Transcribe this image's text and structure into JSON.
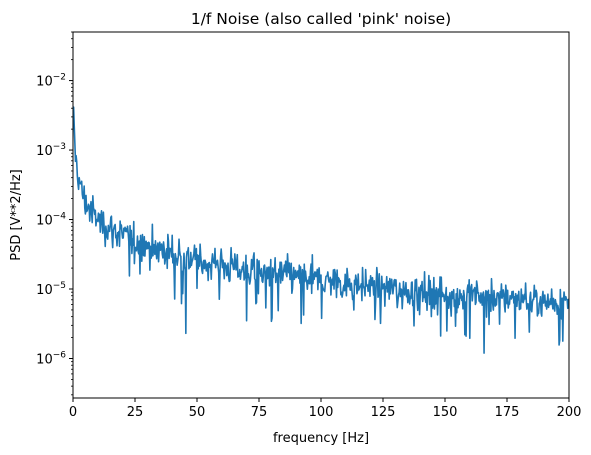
{
  "chart_data": {
    "type": "line",
    "title": "1/f Noise (also called 'pink' noise)",
    "xlabel": "frequency [Hz]",
    "ylabel": "PSD [V**2/Hz]",
    "xlim": [
      0,
      200
    ],
    "ylim": [
      2.7e-07,
      0.05
    ],
    "yscale": "log",
    "grid": false,
    "x_ticks": [
      "0",
      "25",
      "50",
      "75",
      "100",
      "125",
      "150",
      "175",
      "200"
    ],
    "y_ticks": [
      {
        "base": "10",
        "exp": "−2",
        "value": 0.01
      },
      {
        "base": "10",
        "exp": "−3",
        "value": 0.001
      },
      {
        "base": "10",
        "exp": "−4",
        "value": 0.0001
      },
      {
        "base": "10",
        "exp": "−5",
        "value": 1e-05
      },
      {
        "base": "10",
        "exp": "−6",
        "value": 1e-06
      }
    ],
    "series": [
      {
        "color": "#1f77b4",
        "trend": {
          "x": [
            0.25,
            0.5,
            1,
            2,
            3,
            5,
            10,
            15,
            20,
            25,
            30,
            40,
            50,
            60,
            75,
            100,
            125,
            150,
            175,
            200
          ],
          "y": [
            0.0025,
            0.0018,
            0.0009,
            0.00045,
            0.0003,
            0.00018,
            0.0001,
            7.5e-05,
            6e-05,
            5e-05,
            4.2e-05,
            3.3e-05,
            2.7e-05,
            2.2e-05,
            1.8e-05,
            1.35e-05,
            1.05e-05,
            8.5e-06,
            7.5e-06,
            6.5e-06
          ]
        },
        "points": 800,
        "deep_dips": [
          {
            "x": 45.5,
            "y": 2.3e-06
          },
          {
            "x": 70,
            "y": 3.5e-06
          },
          {
            "x": 92,
            "y": 3.2e-06
          },
          {
            "x": 158,
            "y": 2.2e-06
          },
          {
            "x": 184,
            "y": 2.4e-06
          }
        ]
      }
    ]
  }
}
